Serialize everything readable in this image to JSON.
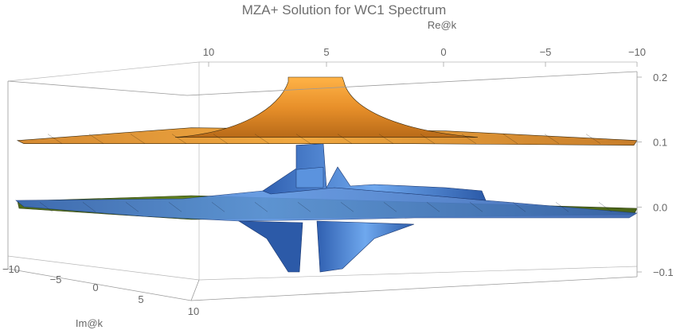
{
  "chart_data": {
    "type": "3d-surface",
    "title": "MZA+ Solution for WC1 Spectrum",
    "axes": {
      "re": {
        "label": "Re@k",
        "ticks": [
          "10",
          "5",
          "0",
          "−5",
          "−10"
        ],
        "range": [
          -10,
          10
        ]
      },
      "im": {
        "label": "Im@k",
        "ticks": [
          "−10",
          "−5",
          "0",
          "5",
          "10"
        ],
        "range": [
          -10,
          10
        ]
      },
      "z": {
        "label": "",
        "ticks": [
          "0.2",
          "0.1",
          "0.0",
          "−0.1"
        ],
        "range": [
          -0.1,
          0.2
        ]
      }
    },
    "series": [
      {
        "color": "#f0a030",
        "baseline": 0.1,
        "peak": 0.2
      },
      {
        "color": "#4a86d8",
        "baseline": 0.0,
        "peak": 0.125,
        "trough": -0.1
      },
      {
        "color": "#6b8e23",
        "baseline": 0.0
      }
    ]
  }
}
